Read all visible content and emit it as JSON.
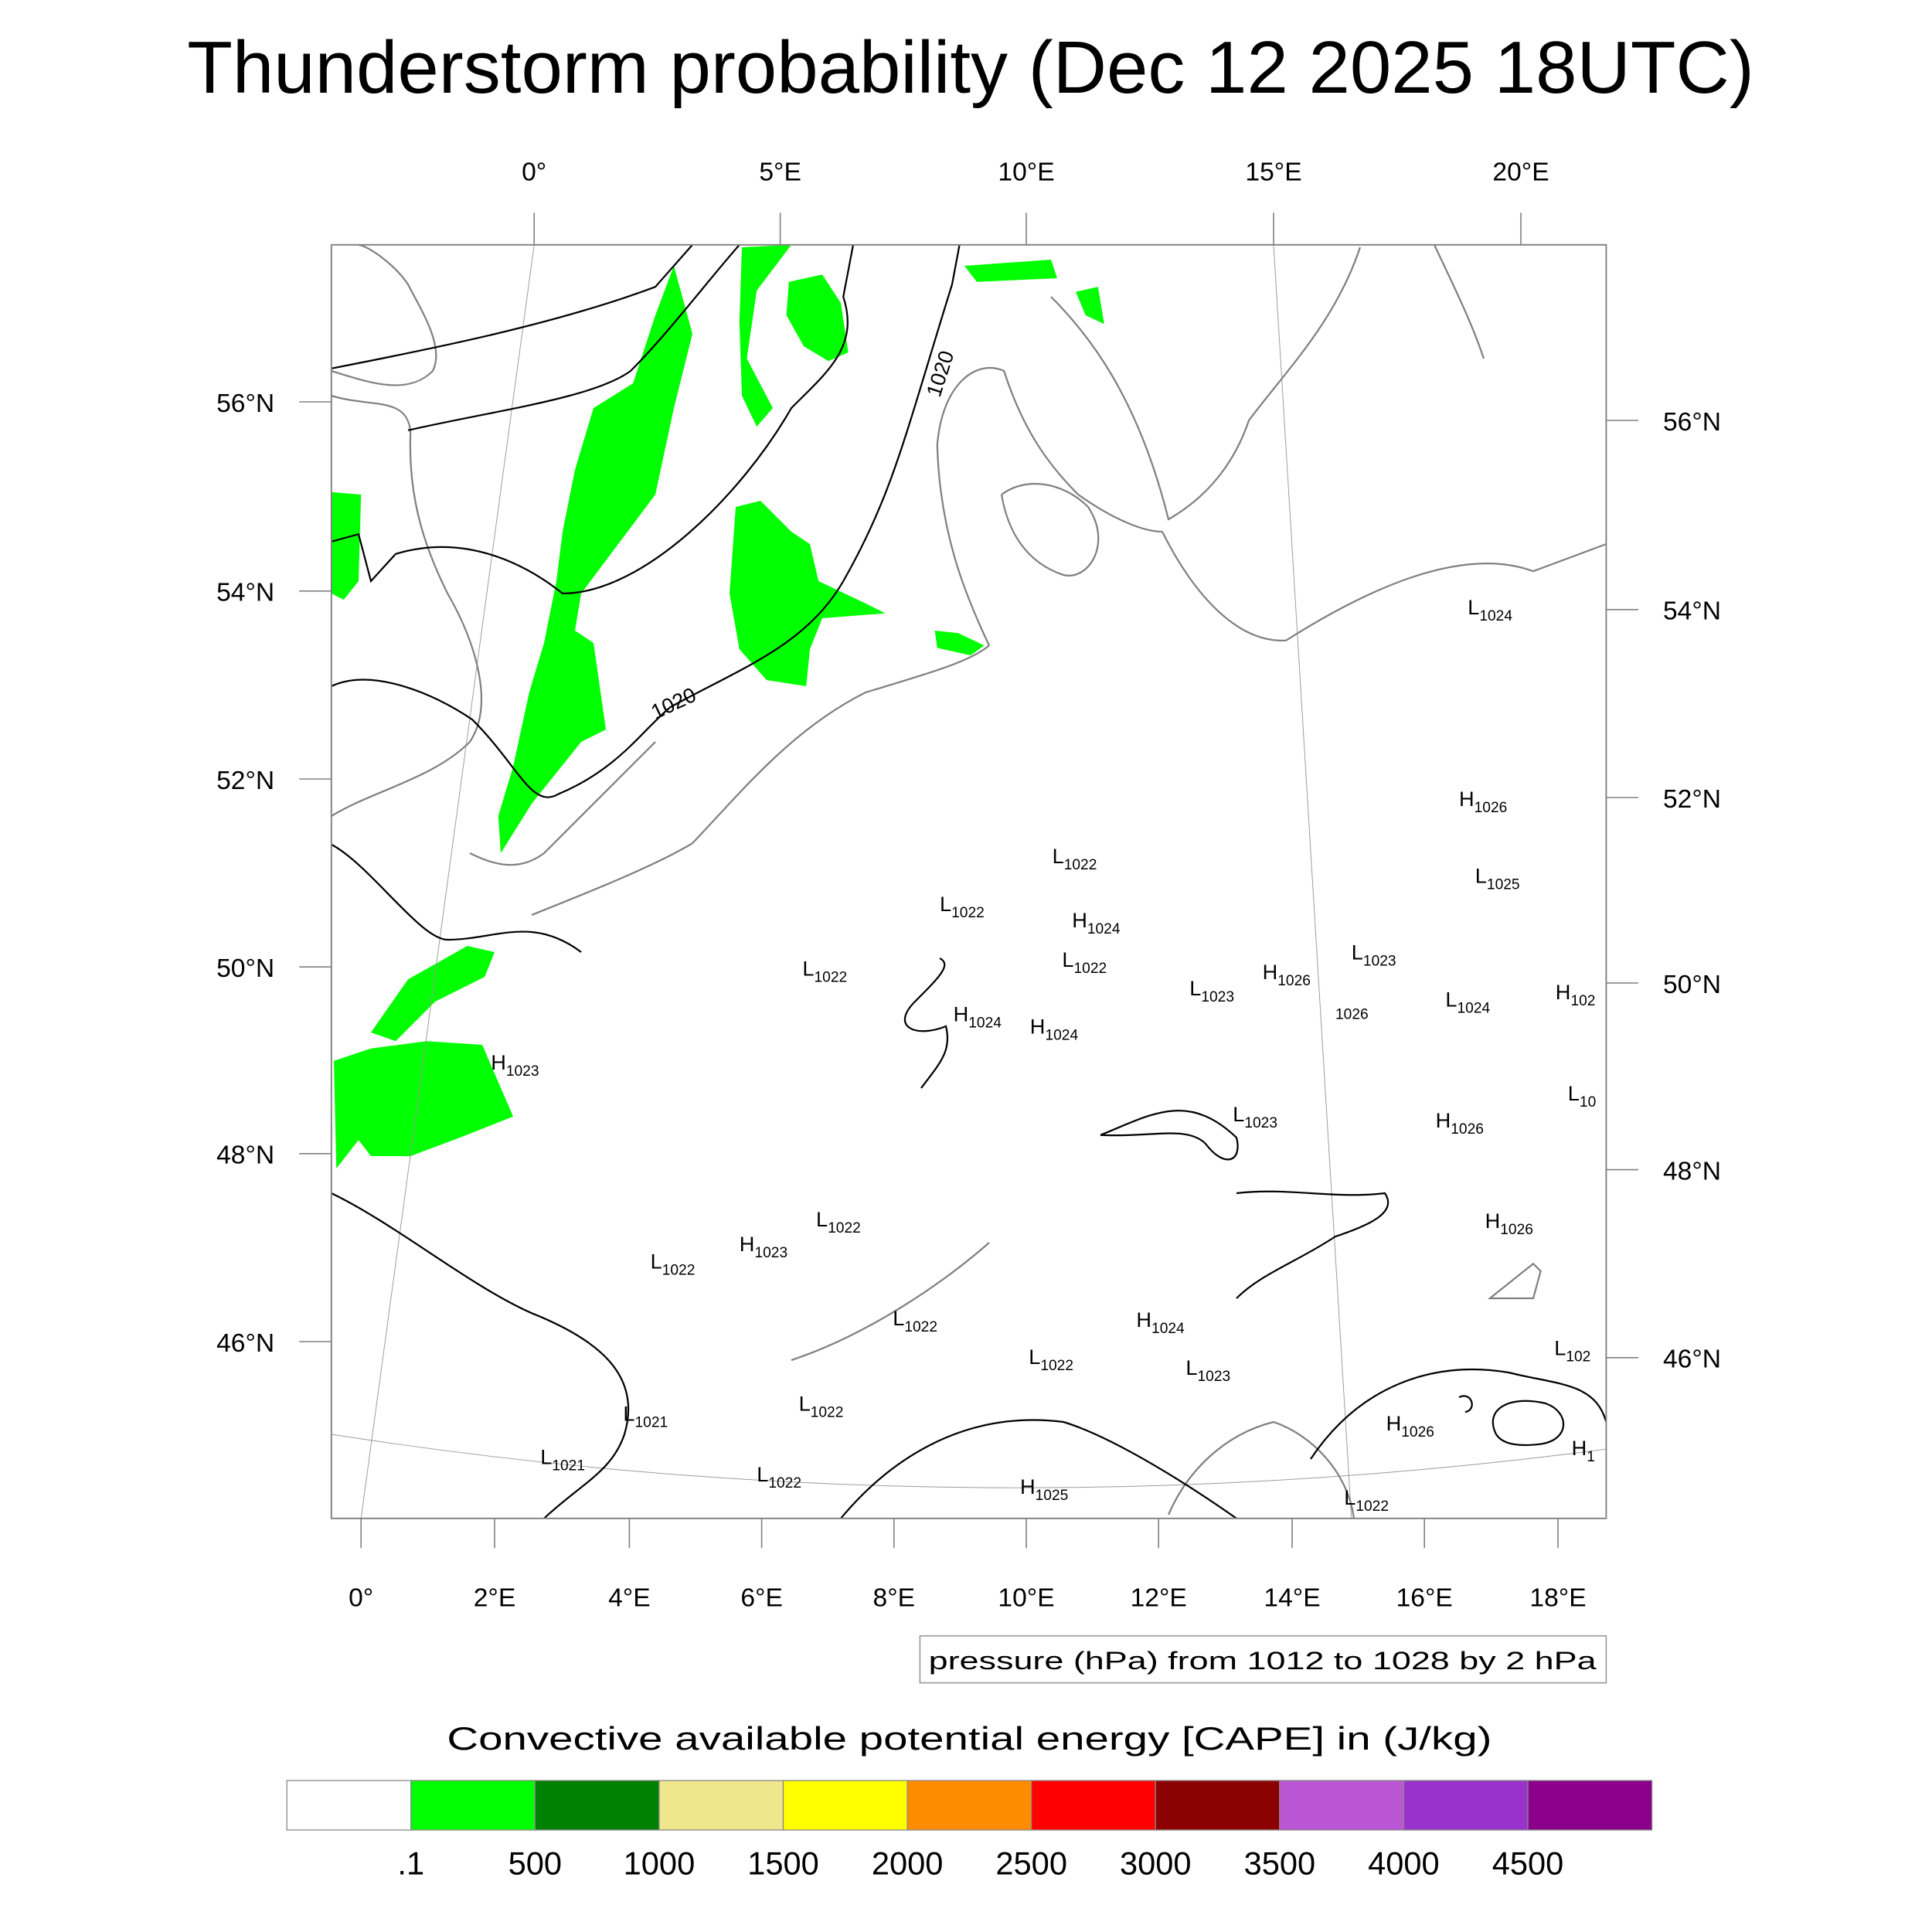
{
  "title": "Thunderstorm probability (Dec 12 2025 18UTC)",
  "colors": {
    "cape_green": "#00ff00",
    "coast": "#808080",
    "contour": "#000000"
  },
  "axes": {
    "top_lon_labels": [
      "0°",
      "5°E",
      "10°E",
      "15°E",
      "20°E"
    ],
    "bottom_lon_labels": [
      "0°",
      "2°E",
      "4°E",
      "6°E",
      "8°E",
      "10°E",
      "12°E",
      "14°E",
      "16°E",
      "18°E"
    ],
    "left_lat_labels": [
      "56°N",
      "54°N",
      "52°N",
      "50°N",
      "48°N",
      "46°N"
    ],
    "right_lat_labels": [
      "56°N",
      "54°N",
      "52°N",
      "50°N",
      "48°N",
      "46°N"
    ]
  },
  "contour_labels": [
    "1020",
    "1020"
  ],
  "pressure_centers": [
    {
      "sym": "L",
      "val": "1024"
    },
    {
      "sym": "H",
      "val": "1026"
    },
    {
      "sym": "L",
      "val": "1025"
    },
    {
      "sym": "L",
      "val": "1022"
    },
    {
      "sym": "L",
      "val": "1022"
    },
    {
      "sym": "H",
      "val": "1024"
    },
    {
      "sym": "L",
      "val": "1022"
    },
    {
      "sym": "L",
      "val": "1022"
    },
    {
      "sym": "L",
      "val": "1023"
    },
    {
      "sym": "L",
      "val": "1023"
    },
    {
      "sym": "H",
      "val": "1026"
    },
    {
      "sym": "",
      "val": "1026"
    },
    {
      "sym": "L",
      "val": "1024"
    },
    {
      "sym": "H",
      "val": "102"
    },
    {
      "sym": "H",
      "val": "1024"
    },
    {
      "sym": "H",
      "val": "1024"
    },
    {
      "sym": "H",
      "val": "1023"
    },
    {
      "sym": "L",
      "val": "10"
    },
    {
      "sym": "L",
      "val": "1023"
    },
    {
      "sym": "H",
      "val": "1026"
    },
    {
      "sym": "H",
      "val": "1026"
    },
    {
      "sym": "L",
      "val": "1022"
    },
    {
      "sym": "H",
      "val": "1023"
    },
    {
      "sym": "L",
      "val": "1022"
    },
    {
      "sym": "L",
      "val": "1022"
    },
    {
      "sym": "H",
      "val": "1024"
    },
    {
      "sym": "L",
      "val": "1022"
    },
    {
      "sym": "L",
      "val": "1023"
    },
    {
      "sym": "L",
      "val": "102"
    },
    {
      "sym": "L",
      "val": "1022"
    },
    {
      "sym": "L",
      "val": "1021"
    },
    {
      "sym": "H",
      "val": "1026"
    },
    {
      "sym": "L",
      "val": "1021"
    },
    {
      "sym": "L",
      "val": "1022"
    },
    {
      "sym": "H",
      "val": "1025"
    },
    {
      "sym": "H",
      "val": "1"
    },
    {
      "sym": "L",
      "val": "1022"
    }
  ],
  "pressure_info": "pressure (hPa) from 1012 to 1028 by 2 hPa",
  "chart_data": {
    "type": "heatmap",
    "title": "Thunderstorm probability (Dec 12 2025 18UTC)",
    "colorbar_title": "Convective available potential energy [CAPE] in (J/kg)",
    "colorbar_levels": [
      ".1",
      "500",
      "1000",
      "1500",
      "2000",
      "2500",
      "3000",
      "3500",
      "4000",
      "4500"
    ],
    "colorbar_colors": [
      "#ffffff",
      "#00ff00",
      "#008000",
      "#f0e68c",
      "#ffff00",
      "#ff8c00",
      "#ff0000",
      "#8b0000",
      "#ba55d3",
      "#9932cc",
      "#8b008b"
    ],
    "lon_range": [
      0,
      20
    ],
    "lat_range": [
      44.5,
      57.5
    ],
    "contour_field": "pressure (hPa)",
    "contour_range": [
      1012,
      1028
    ],
    "contour_interval": 2
  }
}
